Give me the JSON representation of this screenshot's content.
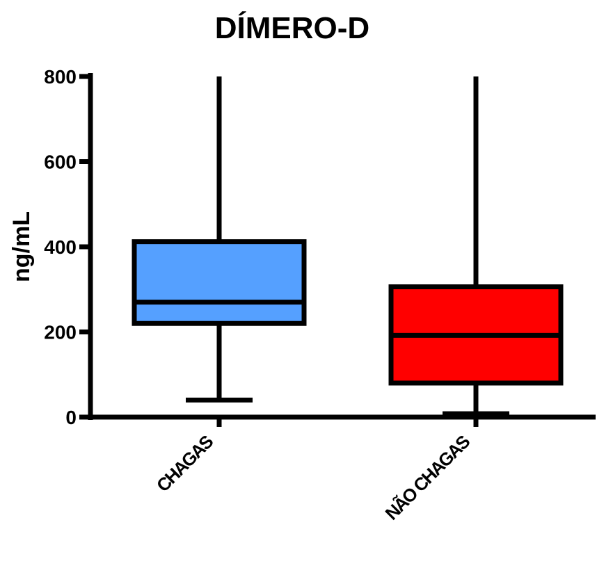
{
  "chart_data": {
    "type": "box",
    "title": "DÍMERO-D",
    "ylabel": "ng/mL",
    "xlabel": "",
    "ylim": [
      0,
      800
    ],
    "yticks": [
      0,
      200,
      400,
      600,
      800
    ],
    "grid": false,
    "categories": [
      "CHAGAS",
      "NÃO CHAGAS"
    ],
    "boxes": [
      {
        "category": "CHAGAS",
        "min": 40,
        "q1": 220,
        "median": 270,
        "q3": 412,
        "max": 800,
        "color": "#55a0ff"
      },
      {
        "category": "NÃO CHAGAS",
        "min": 8,
        "q1": 80,
        "median": 192,
        "q3": 306,
        "max": 800,
        "color": "#ff0000"
      }
    ]
  }
}
